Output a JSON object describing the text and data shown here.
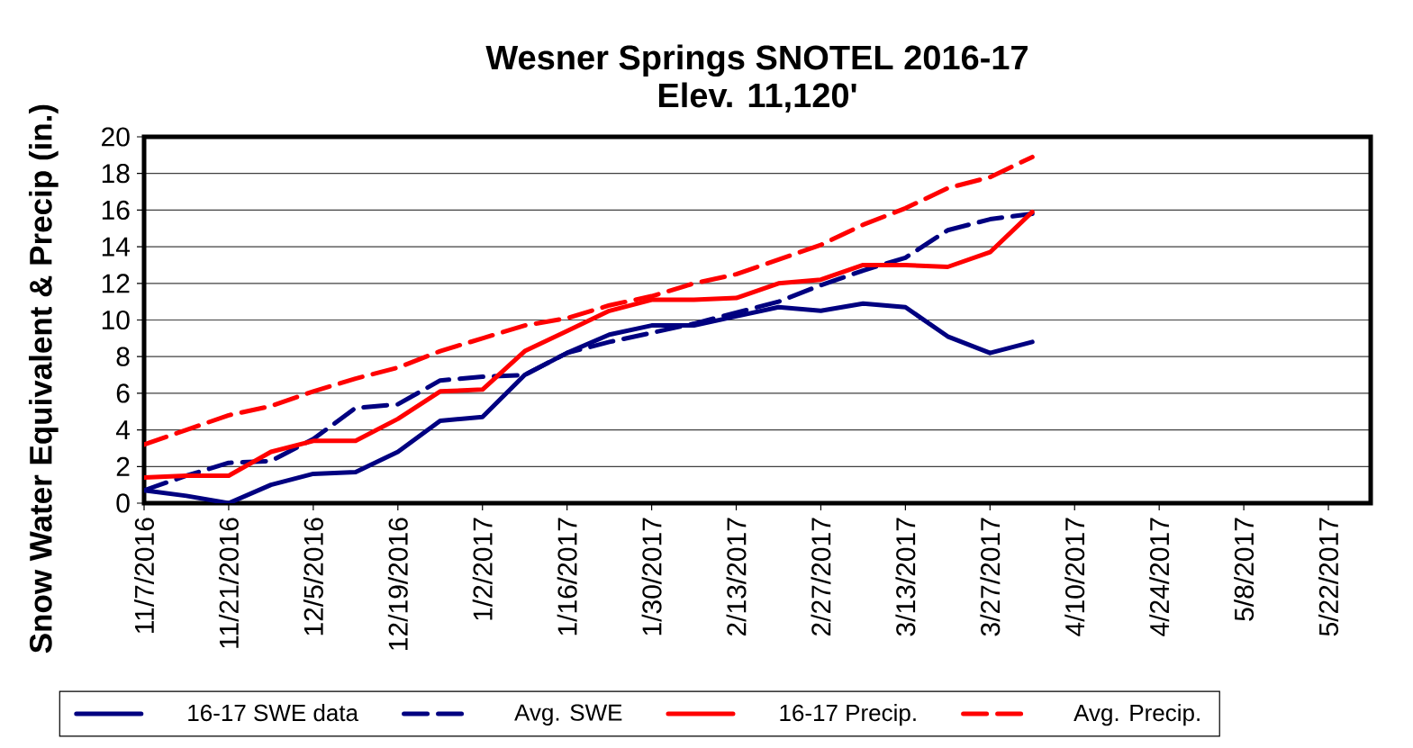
{
  "chart_data": {
    "type": "line",
    "title": "Wesner Springs SNOTEL 2016-17",
    "subtitle": "Elev. 11,120'",
    "ylabel": "Snow Water Equivalent & Precip (in.)",
    "x": [
      "2016-11-07",
      "2016-11-14",
      "2016-11-21",
      "2016-11-28",
      "2016-12-05",
      "2016-12-12",
      "2016-12-19",
      "2016-12-26",
      "2017-01-02",
      "2017-01-09",
      "2017-01-16",
      "2017-01-23",
      "2017-01-30",
      "2017-02-06",
      "2017-02-13",
      "2017-02-20",
      "2017-02-27",
      "2017-03-06",
      "2017-03-13",
      "2017-03-20",
      "2017-03-27",
      "2017-04-03"
    ],
    "series": [
      {
        "name": "16-17 SWE data",
        "color": "#000080",
        "line_style": "solid",
        "values": [
          0.7,
          0.4,
          0.0,
          1.0,
          1.6,
          1.7,
          2.8,
          4.5,
          4.7,
          7.0,
          8.2,
          9.2,
          9.7,
          9.7,
          10.2,
          10.7,
          10.5,
          10.9,
          10.7,
          9.1,
          8.2,
          8.8
        ]
      },
      {
        "name": "Avg. SWE",
        "color": "#000080",
        "line_style": "dashed",
        "values": [
          0.7,
          1.5,
          2.2,
          2.3,
          3.5,
          5.2,
          5.4,
          6.7,
          6.9,
          7.0,
          8.2,
          8.8,
          9.3,
          9.8,
          10.4,
          11.0,
          11.9,
          12.7,
          13.4,
          14.9,
          15.5,
          15.8
        ]
      },
      {
        "name": "16-17 Precip.",
        "color": "#ff0000",
        "line_style": "solid",
        "values": [
          1.4,
          1.5,
          1.5,
          2.8,
          3.4,
          3.4,
          4.6,
          6.1,
          6.2,
          8.3,
          9.4,
          10.5,
          11.1,
          11.1,
          11.2,
          12.0,
          12.2,
          13.0,
          13.0,
          12.9,
          13.7,
          15.9
        ]
      },
      {
        "name": "Avg. Precip.",
        "color": "#ff0000",
        "line_style": "dashed",
        "values": [
          3.2,
          4.0,
          4.8,
          5.3,
          6.1,
          6.8,
          7.4,
          8.3,
          9.0,
          9.7,
          10.1,
          10.8,
          11.3,
          12.0,
          12.5,
          13.3,
          14.1,
          15.2,
          16.1,
          17.2,
          17.8,
          18.9
        ]
      }
    ],
    "xlim": [
      "2016-11-07",
      "2017-05-29"
    ],
    "xticks": [
      {
        "value": "2016-11-07",
        "label": "11/7/2016"
      },
      {
        "value": "2016-11-21",
        "label": "11/21/2016"
      },
      {
        "value": "2016-12-05",
        "label": "12/5/2016"
      },
      {
        "value": "2016-12-19",
        "label": "12/19/2016"
      },
      {
        "value": "2017-01-02",
        "label": "1/2/2017"
      },
      {
        "value": "2017-01-16",
        "label": "1/16/2017"
      },
      {
        "value": "2017-01-30",
        "label": "1/30/2017"
      },
      {
        "value": "2017-02-13",
        "label": "2/13/2017"
      },
      {
        "value": "2017-02-27",
        "label": "2/27/2017"
      },
      {
        "value": "2017-03-13",
        "label": "3/13/2017"
      },
      {
        "value": "2017-03-27",
        "label": "3/27/2017"
      },
      {
        "value": "2017-04-10",
        "label": "4/10/2017"
      },
      {
        "value": "2017-04-24",
        "label": "4/24/2017"
      },
      {
        "value": "2017-05-08",
        "label": "5/8/2017"
      },
      {
        "value": "2017-05-22",
        "label": "5/22/2017"
      }
    ],
    "ylim": [
      0,
      20
    ],
    "yticks": [
      0,
      2,
      4,
      6,
      8,
      10,
      12,
      14,
      16,
      18,
      20
    ],
    "grid": "y",
    "legend": "bottom"
  }
}
